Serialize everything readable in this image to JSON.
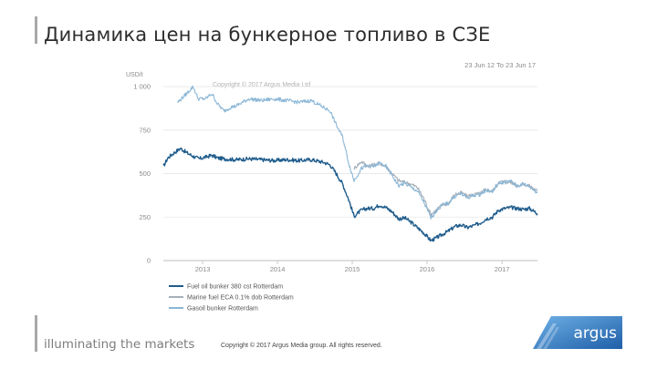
{
  "slide": {
    "title": "Динамика цен на бункерное топливо в СЗЕ",
    "tagline": "illuminating the markets",
    "footer_copyright": "Copyright © 2017 Argus Media group. All rights reserved.",
    "logo_text": "argus"
  },
  "colors": {
    "fuel_oil": "#1f5c8c",
    "marine_fuel": "#a6b0ba",
    "gasoil": "#8ab6d6",
    "logo_blue": "#2e79c2"
  },
  "chart_data": {
    "type": "line",
    "unit_label": "USD/t",
    "date_range": "23 Jun 12 To 23 Jun 17",
    "watermark": "Copyright © 2017 Argus Media Ltd",
    "y_ticks": [
      "1 000",
      "750",
      "500",
      "250",
      "0"
    ],
    "y_tick_values": [
      1000,
      750,
      500,
      250,
      0
    ],
    "x_ticks": [
      "2013",
      "2014",
      "2015",
      "2016",
      "2017"
    ],
    "ylim": [
      0,
      1100
    ],
    "xlim": [
      "2012-06-23",
      "2017-06-23"
    ],
    "grid": true,
    "legend_position": "bottom-left",
    "series": [
      {
        "name": "Fuel oil bunker 380 cst Rotterdam",
        "color_key": "fuel_oil",
        "points": [
          [
            "2012-06-23",
            540
          ],
          [
            "2012-07-15",
            590
          ],
          [
            "2012-08-15",
            620
          ],
          [
            "2012-09-15",
            645
          ],
          [
            "2012-10-15",
            620
          ],
          [
            "2012-11-15",
            600
          ],
          [
            "2012-12-15",
            585
          ],
          [
            "2013-01-15",
            595
          ],
          [
            "2013-02-15",
            605
          ],
          [
            "2013-03-15",
            590
          ],
          [
            "2013-04-15",
            585
          ],
          [
            "2013-06-15",
            580
          ],
          [
            "2013-08-15",
            585
          ],
          [
            "2013-10-15",
            580
          ],
          [
            "2013-12-15",
            575
          ],
          [
            "2014-02-15",
            580
          ],
          [
            "2014-04-15",
            575
          ],
          [
            "2014-06-15",
            580
          ],
          [
            "2014-08-15",
            565
          ],
          [
            "2014-09-15",
            550
          ],
          [
            "2014-10-15",
            500
          ],
          [
            "2014-11-15",
            440
          ],
          [
            "2014-12-15",
            350
          ],
          [
            "2015-01-10",
            255
          ],
          [
            "2015-02-15",
            290
          ],
          [
            "2015-03-15",
            300
          ],
          [
            "2015-04-15",
            300
          ],
          [
            "2015-05-15",
            320
          ],
          [
            "2015-06-15",
            305
          ],
          [
            "2015-07-15",
            280
          ],
          [
            "2015-08-15",
            240
          ],
          [
            "2015-09-15",
            245
          ],
          [
            "2015-10-15",
            220
          ],
          [
            "2015-11-15",
            190
          ],
          [
            "2015-12-15",
            160
          ],
          [
            "2016-01-20",
            115
          ],
          [
            "2016-02-15",
            130
          ],
          [
            "2016-03-15",
            150
          ],
          [
            "2016-04-15",
            170
          ],
          [
            "2016-05-15",
            195
          ],
          [
            "2016-06-15",
            205
          ],
          [
            "2016-07-15",
            190
          ],
          [
            "2016-08-15",
            200
          ],
          [
            "2016-09-15",
            215
          ],
          [
            "2016-10-15",
            240
          ],
          [
            "2016-11-15",
            250
          ],
          [
            "2016-12-15",
            290
          ],
          [
            "2017-01-15",
            300
          ],
          [
            "2017-02-15",
            305
          ],
          [
            "2017-03-15",
            300
          ],
          [
            "2017-04-15",
            295
          ],
          [
            "2017-05-15",
            300
          ],
          [
            "2017-06-23",
            270
          ]
        ]
      },
      {
        "name": "Marine fuel ECA 0.1% dob Rotterdam",
        "color_key": "marine_fuel",
        "points": [
          [
            "2015-01-10",
            530
          ],
          [
            "2015-02-15",
            570
          ],
          [
            "2015-03-15",
            545
          ],
          [
            "2015-04-15",
            550
          ],
          [
            "2015-05-15",
            560
          ],
          [
            "2015-06-15",
            540
          ],
          [
            "2015-07-15",
            500
          ],
          [
            "2015-08-15",
            460
          ],
          [
            "2015-09-15",
            450
          ],
          [
            "2015-10-15",
            440
          ],
          [
            "2015-11-15",
            420
          ],
          [
            "2015-12-15",
            360
          ],
          [
            "2016-01-20",
            265
          ],
          [
            "2016-02-15",
            290
          ],
          [
            "2016-03-15",
            320
          ],
          [
            "2016-04-15",
            330
          ],
          [
            "2016-05-15",
            380
          ],
          [
            "2016-06-15",
            390
          ],
          [
            "2016-07-15",
            370
          ],
          [
            "2016-08-15",
            380
          ],
          [
            "2016-09-15",
            385
          ],
          [
            "2016-10-15",
            410
          ],
          [
            "2016-11-15",
            400
          ],
          [
            "2016-12-15",
            450
          ],
          [
            "2017-01-15",
            455
          ],
          [
            "2017-02-15",
            450
          ],
          [
            "2017-03-15",
            430
          ],
          [
            "2017-04-15",
            440
          ],
          [
            "2017-05-15",
            430
          ],
          [
            "2017-06-23",
            400
          ]
        ]
      },
      {
        "name": "Gasoil bunker Rotterdam",
        "color_key": "gasoil",
        "points": [
          [
            "2012-09-01",
            910
          ],
          [
            "2012-10-15",
            960
          ],
          [
            "2012-11-15",
            1000
          ],
          [
            "2012-12-10",
            930
          ],
          [
            "2013-01-15",
            930
          ],
          [
            "2013-02-15",
            960
          ],
          [
            "2013-03-15",
            900
          ],
          [
            "2013-04-15",
            860
          ],
          [
            "2013-05-15",
            880
          ],
          [
            "2013-06-15",
            890
          ],
          [
            "2013-08-15",
            930
          ],
          [
            "2013-10-15",
            920
          ],
          [
            "2013-12-15",
            930
          ],
          [
            "2014-02-15",
            920
          ],
          [
            "2014-04-15",
            910
          ],
          [
            "2014-06-15",
            920
          ],
          [
            "2014-08-15",
            880
          ],
          [
            "2014-09-15",
            860
          ],
          [
            "2014-10-15",
            780
          ],
          [
            "2014-11-15",
            710
          ],
          [
            "2014-12-15",
            560
          ],
          [
            "2015-01-10",
            460
          ],
          [
            "2015-02-15",
            530
          ],
          [
            "2015-03-15",
            545
          ],
          [
            "2015-04-15",
            540
          ],
          [
            "2015-05-15",
            560
          ],
          [
            "2015-06-15",
            540
          ],
          [
            "2015-07-15",
            490
          ],
          [
            "2015-08-15",
            430
          ],
          [
            "2015-09-15",
            445
          ],
          [
            "2015-10-15",
            420
          ],
          [
            "2015-11-15",
            400
          ],
          [
            "2015-12-15",
            340
          ],
          [
            "2016-01-20",
            245
          ],
          [
            "2016-02-15",
            285
          ],
          [
            "2016-03-15",
            320
          ],
          [
            "2016-04-15",
            330
          ],
          [
            "2016-05-15",
            370
          ],
          [
            "2016-06-15",
            385
          ],
          [
            "2016-07-15",
            360
          ],
          [
            "2016-08-15",
            375
          ],
          [
            "2016-09-15",
            380
          ],
          [
            "2016-10-15",
            405
          ],
          [
            "2016-11-15",
            395
          ],
          [
            "2016-12-15",
            445
          ],
          [
            "2017-01-15",
            450
          ],
          [
            "2017-02-15",
            455
          ],
          [
            "2017-03-15",
            430
          ],
          [
            "2017-04-15",
            440
          ],
          [
            "2017-05-15",
            425
          ],
          [
            "2017-06-23",
            390
          ]
        ]
      }
    ]
  }
}
